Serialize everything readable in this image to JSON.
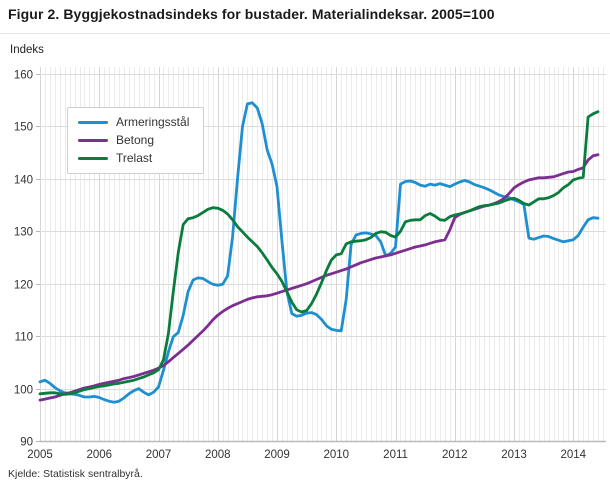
{
  "title": "Figur 2. Byggjekostnadsindeks for bustader. Materialindeksar. 2005=100",
  "y_axis_title": "Indeks",
  "source": "Kjelde: Statistisk sentralbyrå.",
  "chart_data": {
    "type": "line",
    "title": "Figur 2. Byggjekostnadsindeks for bustader. Materialindeksar. 2005=100",
    "xlabel": "",
    "ylabel": "Indeks",
    "ylim": [
      90,
      160
    ],
    "y_ticks": [
      90,
      100,
      110,
      120,
      130,
      140,
      150,
      160
    ],
    "x_tick_labels": [
      "2005",
      "2006",
      "2007",
      "2008",
      "2009",
      "2010",
      "2011",
      "2012",
      "2013",
      "2014"
    ],
    "x_start": "2005-01",
    "x_end": "2014-06",
    "frequency": "monthly",
    "grid": {
      "horizontal_major": true,
      "vertical_minor_monthly": true,
      "vertical_major_yearly": true
    },
    "legend_position": "top-left-inside",
    "series": [
      {
        "name": "Armeringsstål",
        "color": "#1e8fd0",
        "values": [
          101.3,
          101.6,
          101.0,
          100.2,
          99.6,
          99.2,
          99.0,
          98.9,
          98.7,
          98.4,
          98.4,
          98.5,
          98.3,
          97.9,
          97.6,
          97.4,
          97.6,
          98.2,
          99.0,
          99.6,
          100.0,
          99.3,
          98.8,
          99.3,
          100.3,
          103.5,
          107.0,
          109.9,
          110.7,
          114.0,
          118.5,
          120.7,
          121.1,
          121.0,
          120.4,
          119.9,
          119.7,
          119.9,
          121.5,
          129.0,
          140.0,
          150.0,
          154.3,
          154.5,
          153.5,
          150.5,
          145.5,
          142.8,
          138.5,
          128.0,
          118.5,
          114.3,
          113.8,
          114.0,
          114.4,
          114.5,
          114.1,
          113.2,
          112.0,
          111.3,
          111.1,
          111.0,
          117.0,
          127.5,
          129.3,
          129.6,
          129.7,
          129.5,
          129.2,
          128.0,
          125.3,
          125.8,
          127.0,
          139.0,
          139.5,
          139.6,
          139.3,
          138.8,
          138.6,
          139.0,
          138.8,
          139.1,
          138.8,
          138.5,
          139.0,
          139.4,
          139.7,
          139.4,
          138.9,
          138.6,
          138.3,
          137.9,
          137.4,
          136.9,
          136.6,
          136.4,
          136.0,
          135.6,
          135.1,
          128.7,
          128.5,
          128.8,
          129.1,
          129.0,
          128.6,
          128.3,
          128.0,
          128.2,
          128.4,
          129.2,
          130.8,
          132.2,
          132.6,
          132.5
        ]
      },
      {
        "name": "Betong",
        "color": "#7d2f91",
        "values": [
          97.8,
          98.0,
          98.2,
          98.4,
          98.7,
          99.0,
          99.2,
          99.5,
          99.8,
          100.1,
          100.3,
          100.5,
          100.8,
          101.0,
          101.2,
          101.4,
          101.6,
          101.9,
          102.1,
          102.3,
          102.6,
          102.9,
          103.2,
          103.5,
          103.9,
          104.4,
          105.1,
          105.9,
          106.7,
          107.5,
          108.3,
          109.2,
          110.1,
          111.0,
          112.0,
          113.1,
          114.0,
          114.7,
          115.3,
          115.8,
          116.2,
          116.6,
          117.0,
          117.3,
          117.5,
          117.6,
          117.7,
          117.9,
          118.2,
          118.5,
          118.8,
          119.1,
          119.4,
          119.7,
          120.0,
          120.4,
          120.8,
          121.2,
          121.6,
          121.9,
          122.2,
          122.5,
          122.8,
          123.2,
          123.6,
          124.0,
          124.3,
          124.6,
          124.9,
          125.1,
          125.3,
          125.5,
          125.8,
          126.1,
          126.4,
          126.7,
          127.0,
          127.2,
          127.4,
          127.7,
          128.0,
          128.2,
          128.4,
          130.3,
          132.6,
          133.2,
          133.6,
          133.9,
          134.2,
          134.5,
          134.8,
          135.0,
          135.3,
          135.7,
          136.3,
          137.2,
          138.3,
          138.9,
          139.4,
          139.8,
          140.0,
          140.2,
          140.2,
          140.3,
          140.4,
          140.7,
          141.0,
          141.3,
          141.4,
          141.8,
          142.1,
          143.6,
          144.4,
          144.6
        ]
      },
      {
        "name": "Trelast",
        "color": "#0a7d3e",
        "values": [
          99.0,
          99.1,
          99.2,
          99.2,
          99.0,
          98.9,
          99.0,
          99.2,
          99.5,
          99.8,
          100.0,
          100.2,
          100.4,
          100.5,
          100.7,
          100.9,
          101.0,
          101.2,
          101.4,
          101.6,
          101.9,
          102.2,
          102.6,
          103.0,
          103.6,
          105.5,
          110.5,
          118.5,
          126.0,
          131.3,
          132.4,
          132.6,
          133.0,
          133.6,
          134.2,
          134.5,
          134.4,
          134.0,
          133.3,
          132.2,
          130.9,
          129.9,
          128.9,
          128.0,
          127.1,
          125.9,
          124.5,
          123.1,
          121.9,
          120.4,
          118.5,
          116.5,
          115.0,
          114.6,
          114.9,
          116.2,
          118.0,
          120.2,
          122.5,
          124.5,
          125.5,
          125.7,
          127.6,
          128.0,
          128.1,
          128.2,
          128.4,
          128.8,
          129.6,
          129.9,
          129.8,
          129.2,
          128.9,
          130.0,
          131.8,
          132.1,
          132.2,
          132.2,
          133.0,
          133.4,
          132.9,
          132.2,
          132.1,
          132.8,
          133.1,
          133.3,
          133.6,
          133.9,
          134.3,
          134.7,
          134.9,
          135.0,
          135.2,
          135.4,
          135.8,
          136.1,
          136.3,
          135.9,
          135.3,
          135.0,
          135.6,
          136.2,
          136.2,
          136.4,
          136.8,
          137.4,
          138.3,
          138.9,
          139.8,
          140.1,
          140.3,
          151.8,
          152.4,
          152.8
        ]
      }
    ]
  }
}
